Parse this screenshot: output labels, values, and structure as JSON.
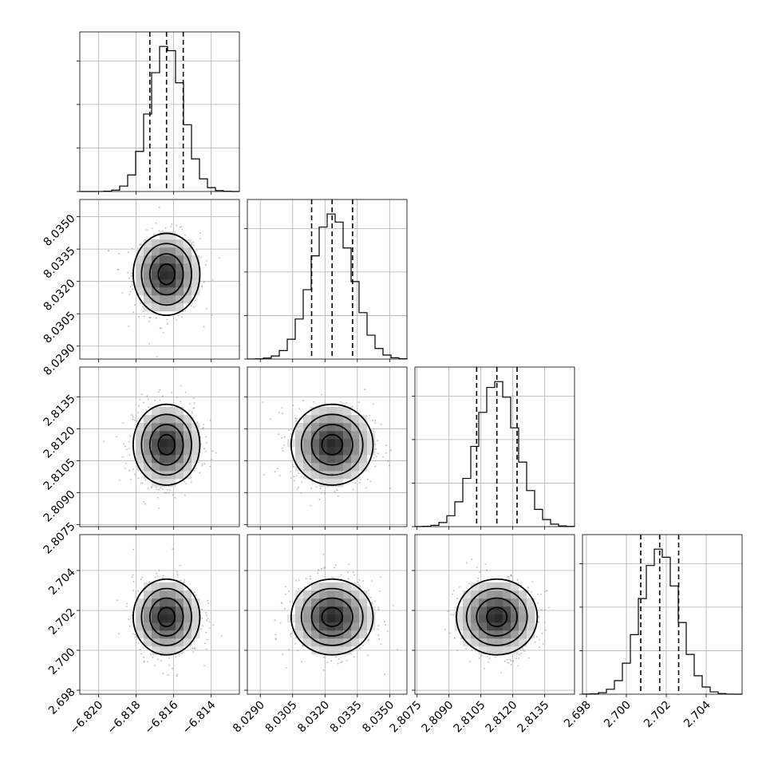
{
  "chart_data": {
    "type": "corner",
    "grid": true,
    "parameters": [
      {
        "mean": -6.81638,
        "sigma": 0.000888,
        "range": [
          -6.821,
          -6.8125
        ],
        "ticks": [
          -6.82,
          -6.818,
          -6.816,
          -6.814
        ],
        "tick_labels": [
          "−6.820",
          "−6.818",
          "−6.816",
          "−6.814"
        ],
        "quantiles": [
          -6.81727,
          -6.81638,
          -6.81549
        ]
      },
      {
        "mean": 8.03233,
        "sigma": 0.00095,
        "range": [
          8.0284,
          8.0358
        ],
        "ticks": [
          8.029,
          8.0305,
          8.032,
          8.0335,
          8.035
        ],
        "tick_labels": [
          "8.0290",
          "8.0305",
          "8.0320",
          "8.0335",
          "8.0350"
        ],
        "quantiles": [
          8.03138,
          8.03233,
          8.03328
        ]
      },
      {
        "mean": 2.81125,
        "sigma": 0.00095,
        "range": [
          2.8074,
          2.8149
        ],
        "ticks": [
          2.8075,
          2.809,
          2.8105,
          2.812,
          2.8135
        ],
        "tick_labels": [
          "2.8075",
          "2.8090",
          "2.8105",
          "2.8120",
          "2.8135"
        ],
        "quantiles": [
          2.8103,
          2.81125,
          2.8122
        ]
      },
      {
        "mean": 2.70167,
        "sigma": 0.00095,
        "range": [
          2.6978,
          2.7058
        ],
        "ticks": [
          2.698,
          2.7,
          2.702,
          2.704
        ],
        "tick_labels": [
          "2.698",
          "2.700",
          "2.702",
          "2.704"
        ],
        "quantiles": [
          2.70072,
          2.70167,
          2.70262
        ]
      }
    ],
    "contour_levels_sigma": [
      0.5,
      1.0,
      1.5,
      2.0
    ],
    "colors": {
      "line": "#000000",
      "scatter": "#7a7a7a",
      "grid": "#b0b0b0"
    }
  }
}
